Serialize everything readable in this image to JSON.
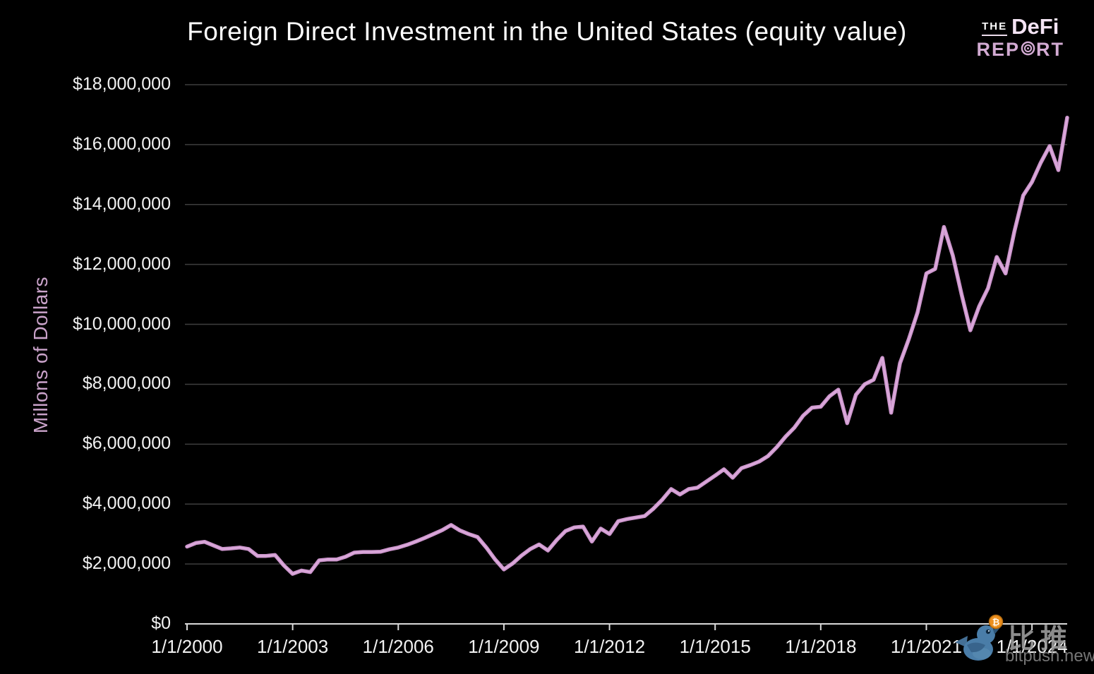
{
  "header": {
    "title": "Foreign Direct Investment in the United States (equity value)",
    "logo": {
      "the": "THE",
      "defi": "DeFi",
      "rep": "REP",
      "rt": "RT"
    }
  },
  "watermark": {
    "cn": "比推",
    "site": "bitpush.news",
    "coin_symbol": "₿"
  },
  "chart_data": {
    "type": "line",
    "title": "Foreign Direct Investment in the United States (equity value)",
    "xlabel": "",
    "ylabel": "Millons of Dollars",
    "ylim": [
      0,
      18000000
    ],
    "y_tick_step": 2000000,
    "y_tick_labels": [
      "$0",
      "$2,000,000",
      "$4,000,000",
      "$6,000,000",
      "$8,000,000",
      "$10,000,000",
      "$12,000,000",
      "$14,000,000",
      "$16,000,000",
      "$18,000,000"
    ],
    "x_tick_labels": [
      "1/1/2000",
      "1/1/2003",
      "1/1/2006",
      "1/1/2009",
      "1/1/2012",
      "1/1/2015",
      "1/1/2018",
      "1/1/2021",
      "1/1/2024"
    ],
    "x_tick_every_n_points": 12,
    "frequency": "quarterly",
    "x_start": "1/1/2000",
    "x_end": "1/1/2025",
    "grid": true,
    "legend": "none",
    "line_color": "#cd96cd",
    "line_highlight_color": "#e2b4e2",
    "grid_color": "#3e3e3e",
    "axis_color": "#d9d9d9",
    "background_color": "#000000",
    "values": [
      2580000,
      2700000,
      2740000,
      2620000,
      2500000,
      2520000,
      2550000,
      2500000,
      2270000,
      2270000,
      2300000,
      1950000,
      1670000,
      1780000,
      1730000,
      2120000,
      2150000,
      2150000,
      2240000,
      2380000,
      2400000,
      2400000,
      2410000,
      2490000,
      2550000,
      2640000,
      2750000,
      2870000,
      3000000,
      3130000,
      3300000,
      3120000,
      3000000,
      2900000,
      2550000,
      2150000,
      1820000,
      2020000,
      2280000,
      2500000,
      2650000,
      2450000,
      2800000,
      3100000,
      3220000,
      3250000,
      2750000,
      3180000,
      3000000,
      3430000,
      3500000,
      3550000,
      3600000,
      3850000,
      4150000,
      4500000,
      4320000,
      4500000,
      4550000,
      4750000,
      4950000,
      5160000,
      4880000,
      5200000,
      5300000,
      5420000,
      5600000,
      5900000,
      6250000,
      6550000,
      6950000,
      7220000,
      7250000,
      7600000,
      7820000,
      6700000,
      7650000,
      8000000,
      8150000,
      8880000,
      7050000,
      8700000,
      9500000,
      10400000,
      11700000,
      11850000,
      13250000,
      12300000,
      11000000,
      9800000,
      10600000,
      11200000,
      12250000,
      11700000,
      13100000,
      14300000,
      14750000,
      15400000,
      15950000,
      15150000,
      16900000
    ]
  }
}
